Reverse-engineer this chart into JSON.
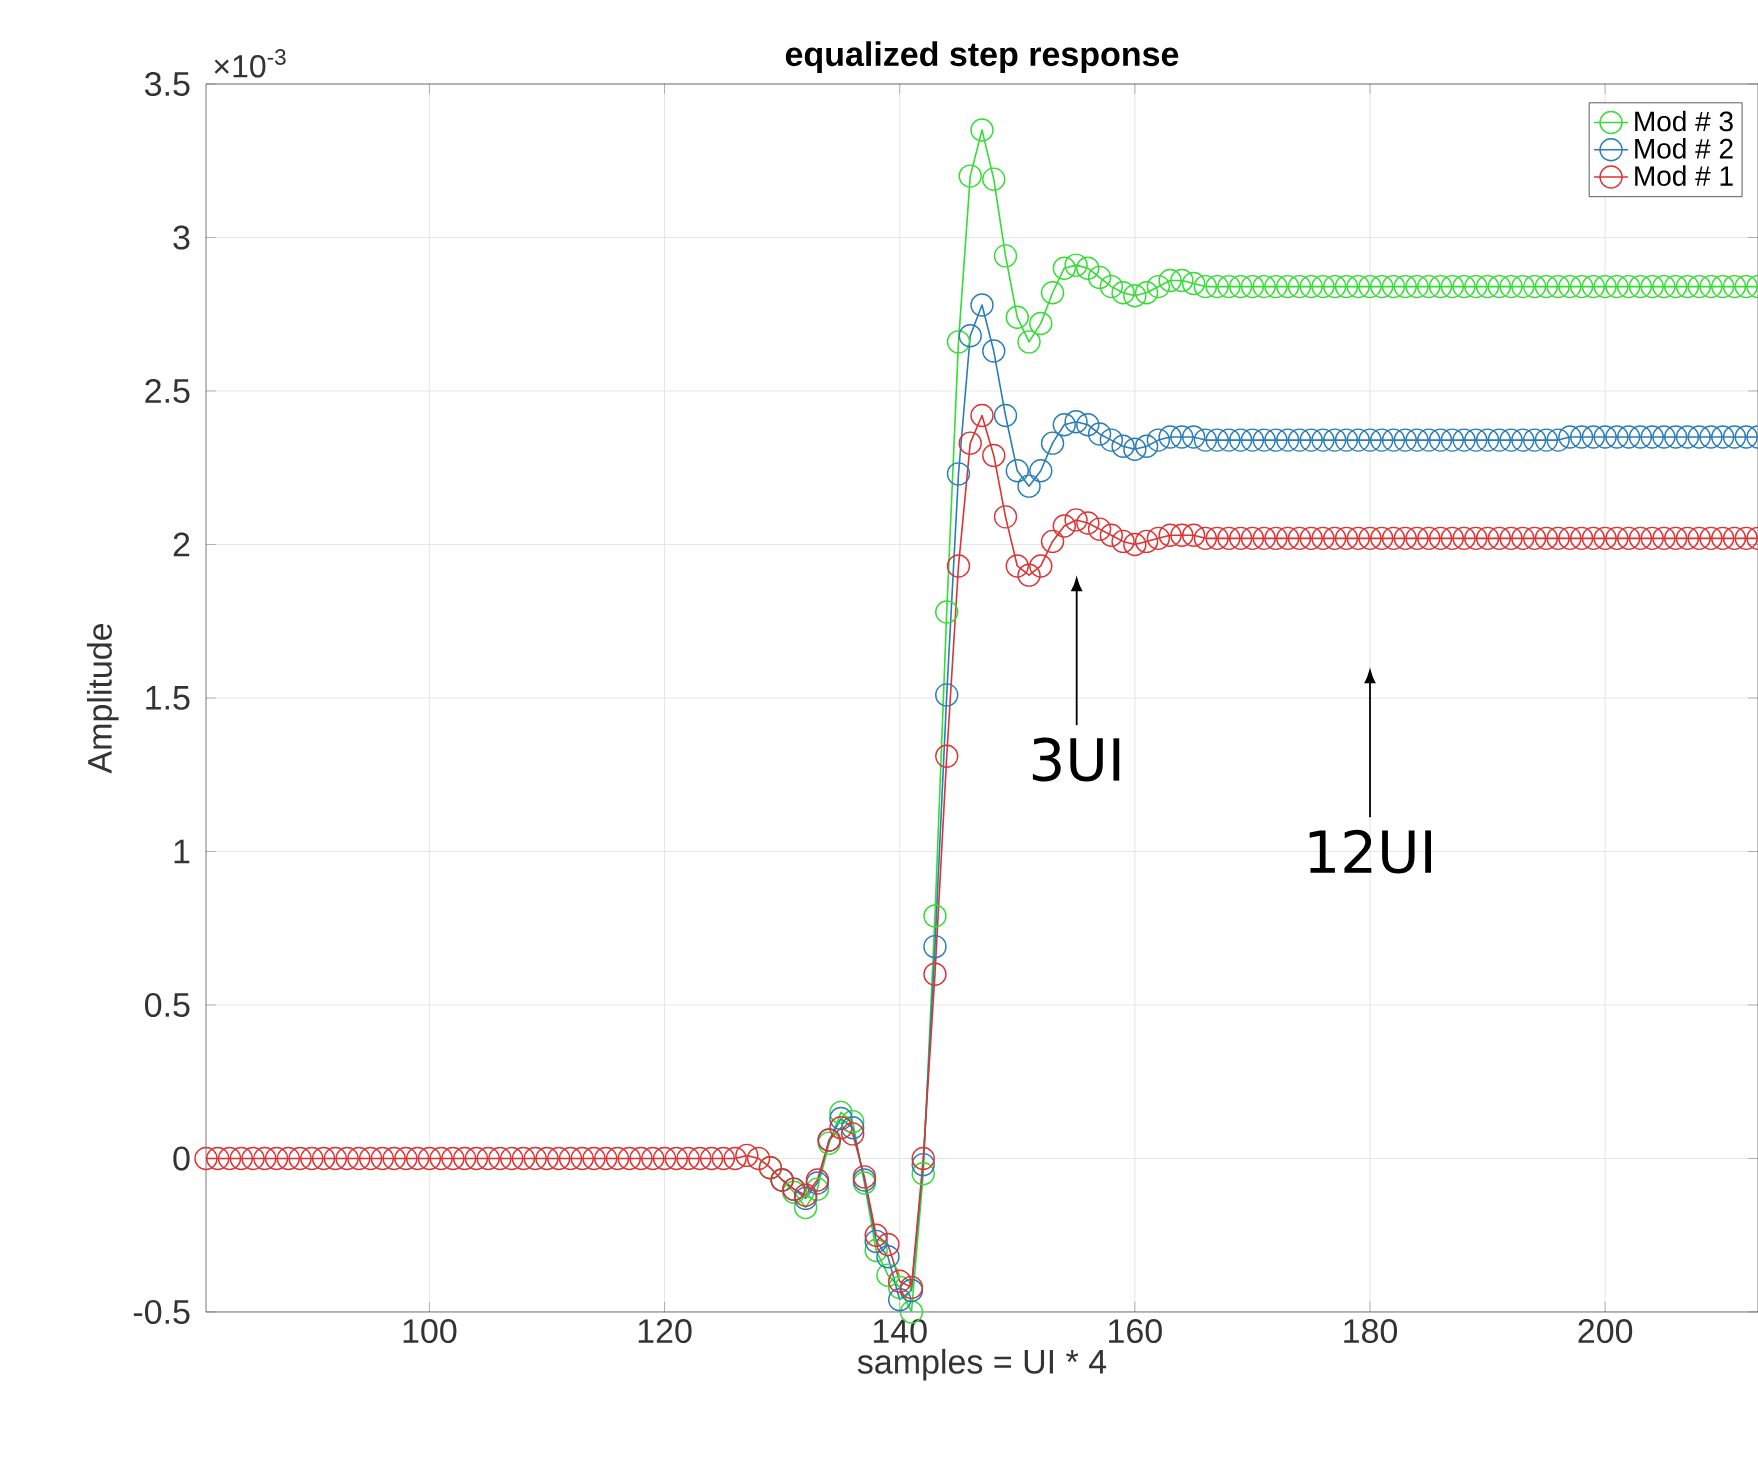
{
  "chart_data": {
    "type": "line",
    "title": "equalized step response",
    "xlabel": "samples = UI * 4",
    "ylabel": "Amplitude",
    "annotations": [
      "×10$^{-3}$",
      "3UI",
      "12UI"
    ],
    "x": [
      81,
      82,
      83,
      84,
      85,
      86,
      87,
      88,
      89,
      90,
      91,
      92,
      93,
      94,
      95,
      96,
      97,
      98,
      99,
      100,
      101,
      102,
      103,
      104,
      105,
      106,
      107,
      108,
      109,
      110,
      111,
      112,
      113,
      114,
      115,
      116,
      117,
      118,
      119,
      120,
      121,
      122,
      123,
      124,
      125,
      126,
      127,
      128,
      129,
      130,
      131,
      132,
      133,
      134,
      135,
      136,
      137,
      138,
      139,
      140,
      141,
      142,
      143,
      144,
      145,
      146,
      147,
      148,
      149,
      150,
      151,
      152,
      153,
      154,
      155,
      156,
      157,
      158,
      159,
      160,
      161,
      162,
      163,
      164,
      165,
      166,
      167,
      168,
      169,
      170,
      171,
      172,
      173,
      174,
      175,
      176,
      177,
      178,
      179,
      180,
      181,
      182,
      183,
      184,
      185,
      186,
      187,
      188,
      189,
      190,
      191,
      192,
      193,
      194,
      195,
      196,
      197,
      198,
      199,
      200,
      201,
      202,
      203,
      204,
      205,
      206,
      207,
      208,
      209,
      210,
      211,
      212,
      213
    ],
    "series": [
      {
        "name": "Mod # 3",
        "color": "#33dd33",
        "values": [
          null,
          null,
          null,
          null,
          null,
          null,
          null,
          null,
          null,
          null,
          null,
          null,
          null,
          null,
          null,
          null,
          null,
          null,
          null,
          null,
          null,
          null,
          null,
          null,
          null,
          null,
          null,
          null,
          null,
          null,
          null,
          null,
          null,
          null,
          null,
          null,
          null,
          null,
          null,
          null,
          null,
          null,
          null,
          null,
          null,
          null,
          null,
          null,
          -0.03,
          -0.07,
          -0.11,
          -0.16,
          -0.1,
          0.05,
          0.15,
          0.12,
          -0.08,
          -0.3,
          -0.38,
          -0.42,
          -0.5,
          -0.05,
          0.79,
          1.78,
          2.66,
          3.2,
          3.35,
          3.19,
          2.94,
          2.74,
          2.66,
          2.72,
          2.82,
          2.9,
          2.91,
          2.9,
          2.87,
          2.84,
          2.82,
          2.81,
          2.82,
          2.84,
          2.86,
          2.86,
          2.85,
          2.84,
          2.84,
          2.84,
          2.84,
          2.84,
          2.84,
          2.84,
          2.84,
          2.84,
          2.84,
          2.84,
          2.84,
          2.84,
          2.84,
          2.84,
          2.84,
          2.84,
          2.84,
          2.84,
          2.84,
          2.84,
          2.84,
          2.84,
          2.84,
          2.84,
          2.84,
          2.84,
          2.84,
          2.84,
          2.84,
          2.84,
          2.84,
          2.84,
          2.84,
          2.84,
          2.84,
          2.84,
          2.84,
          2.84,
          2.84,
          2.84,
          2.84,
          2.84,
          2.84,
          2.84,
          2.84,
          2.84,
          2.84
        ]
      },
      {
        "name": "Mod # 2",
        "color": "#2a7db8",
        "values": [
          null,
          null,
          null,
          null,
          null,
          null,
          null,
          null,
          null,
          null,
          null,
          null,
          null,
          null,
          null,
          null,
          null,
          null,
          null,
          null,
          null,
          null,
          null,
          null,
          null,
          null,
          null,
          null,
          null,
          null,
          null,
          null,
          null,
          null,
          null,
          null,
          null,
          null,
          null,
          null,
          null,
          null,
          null,
          null,
          null,
          null,
          null,
          null,
          null,
          -0.07,
          -0.1,
          -0.13,
          -0.08,
          0.06,
          0.13,
          0.1,
          -0.07,
          -0.27,
          -0.32,
          -0.46,
          -0.43,
          -0.02,
          0.69,
          1.51,
          2.23,
          2.68,
          2.78,
          2.63,
          2.42,
          2.24,
          2.19,
          2.24,
          2.33,
          2.39,
          2.4,
          2.39,
          2.36,
          2.34,
          2.32,
          2.31,
          2.32,
          2.34,
          2.35,
          2.35,
          2.35,
          2.34,
          2.34,
          2.34,
          2.34,
          2.34,
          2.34,
          2.34,
          2.34,
          2.34,
          2.34,
          2.34,
          2.34,
          2.34,
          2.34,
          2.34,
          2.34,
          2.34,
          2.34,
          2.34,
          2.34,
          2.34,
          2.34,
          2.34,
          2.34,
          2.34,
          2.34,
          2.34,
          2.34,
          2.34,
          2.34,
          2.34,
          2.35,
          2.35,
          2.35,
          2.35,
          2.35,
          2.35,
          2.35,
          2.35,
          2.35,
          2.35,
          2.35,
          2.35,
          2.35,
          2.35,
          2.35,
          2.35,
          2.35
        ]
      },
      {
        "name": "Mod # 1",
        "color": "#dd3333",
        "values": [
          0,
          0,
          0,
          0,
          0,
          0,
          0,
          0,
          0,
          0,
          0,
          0,
          0,
          0,
          0,
          0,
          0,
          0,
          0,
          0,
          0,
          0,
          0,
          0,
          0,
          0,
          0,
          0,
          0,
          0,
          0,
          0,
          0,
          0,
          0,
          0,
          0,
          0,
          0,
          0,
          0,
          0,
          0,
          0,
          0,
          0,
          0.01,
          0.0,
          -0.03,
          -0.07,
          -0.1,
          -0.12,
          -0.07,
          0.06,
          0.1,
          0.08,
          -0.06,
          -0.25,
          -0.28,
          -0.4,
          -0.42,
          0.0,
          0.6,
          1.31,
          1.93,
          2.33,
          2.42,
          2.29,
          2.09,
          1.93,
          1.9,
          1.93,
          2.01,
          2.06,
          2.08,
          2.07,
          2.05,
          2.03,
          2.01,
          2.0,
          2.01,
          2.02,
          2.03,
          2.03,
          2.03,
          2.02,
          2.02,
          2.02,
          2.02,
          2.02,
          2.02,
          2.02,
          2.02,
          2.02,
          2.02,
          2.02,
          2.02,
          2.02,
          2.02,
          2.02,
          2.02,
          2.02,
          2.02,
          2.02,
          2.02,
          2.02,
          2.02,
          2.02,
          2.02,
          2.02,
          2.02,
          2.02,
          2.02,
          2.02,
          2.02,
          2.02,
          2.02,
          2.02,
          2.02,
          2.02,
          2.02,
          2.02,
          2.02,
          2.02,
          2.02,
          2.02,
          2.02,
          2.02,
          2.02,
          2.02,
          2.02,
          2.02,
          2.02
        ]
      }
    ],
    "xlim": [
      81,
      213
    ],
    "ylim": [
      -0.5,
      3.5
    ],
    "xticks": [
      100,
      120,
      140,
      160,
      180,
      200
    ],
    "yticks": [
      -0.5,
      0,
      0.5,
      1,
      1.5,
      2,
      2.5,
      3,
      3.5
    ],
    "grid": true,
    "legend": "top right",
    "marker": "circle",
    "line_style": "solid"
  }
}
